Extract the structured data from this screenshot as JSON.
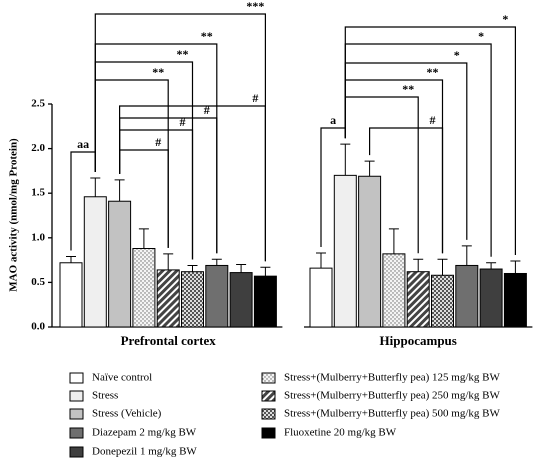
{
  "chart_data": {
    "type": "bar",
    "ylabel": "MAO activity (nmol/mg Protein)",
    "categories": [
      "Prefrontal cortex",
      "Hippocampus"
    ],
    "ylim": [
      0,
      2.5
    ],
    "yticks": [
      {
        "value": 0,
        "label": "0.0"
      },
      {
        "value": 0.5,
        "label": "0.5"
      },
      {
        "value": 1,
        "label": "1.0"
      },
      {
        "value": 1.5,
        "label": "1.5"
      },
      {
        "value": 2,
        "label": "2.0"
      },
      {
        "value": 2.5,
        "label": "2.5"
      }
    ],
    "series": [
      {
        "name": "Naïve control",
        "color": "#ffffff",
        "values": [
          0.72,
          0.66
        ],
        "errors": [
          0.07,
          0.17
        ]
      },
      {
        "name": "Stress",
        "color": "#efefef",
        "values": [
          1.46,
          1.7
        ],
        "errors": [
          0.21,
          0.35
        ]
      },
      {
        "name": "Stress (Vehicle)",
        "color": "#c2c2c2",
        "values": [
          1.41,
          1.69
        ],
        "errors": [
          0.24,
          0.17
        ]
      },
      {
        "name": "Stress+(Mulberry+Butterfly pea) 125 mg/kg BW",
        "color": "#f4f4f4",
        "pattern": "dots",
        "values": [
          0.88,
          0.82
        ],
        "errors": [
          0.22,
          0.28
        ]
      },
      {
        "name": "Stress+(Mulberry+Butterfly pea) 250 mg/kg BW",
        "color": "#555555",
        "pattern": "diagonal",
        "values": [
          0.64,
          0.62
        ],
        "errors": [
          0.18,
          0.14
        ]
      },
      {
        "name": "Stress+(Mulberry+Butterfly pea) 500 mg/kg BW",
        "color": "#777777",
        "pattern": "grid",
        "values": [
          0.62,
          0.58
        ],
        "errors": [
          0.07,
          0.18
        ]
      },
      {
        "name": "Diazepam 2 mg/kg BW",
        "color": "#6f6f6f",
        "values": [
          0.69,
          0.69
        ],
        "errors": [
          0.07,
          0.22
        ]
      },
      {
        "name": "Donepezil 1 mg/kg BW",
        "color": "#3f3f3f",
        "values": [
          0.61,
          0.65
        ],
        "errors": [
          0.09,
          0.07
        ]
      },
      {
        "name": "Fluoxetine 20 mg/kg BW",
        "color": "#000000",
        "values": [
          0.57,
          0.6
        ],
        "errors": [
          0.1,
          0.14
        ]
      }
    ],
    "annotations": [
      [
        "aa",
        "#",
        "#",
        "#",
        "#",
        "**",
        "**",
        "**",
        "***"
      ],
      [
        "a",
        "#",
        "**",
        "**",
        "*",
        "*",
        "*"
      ]
    ]
  }
}
